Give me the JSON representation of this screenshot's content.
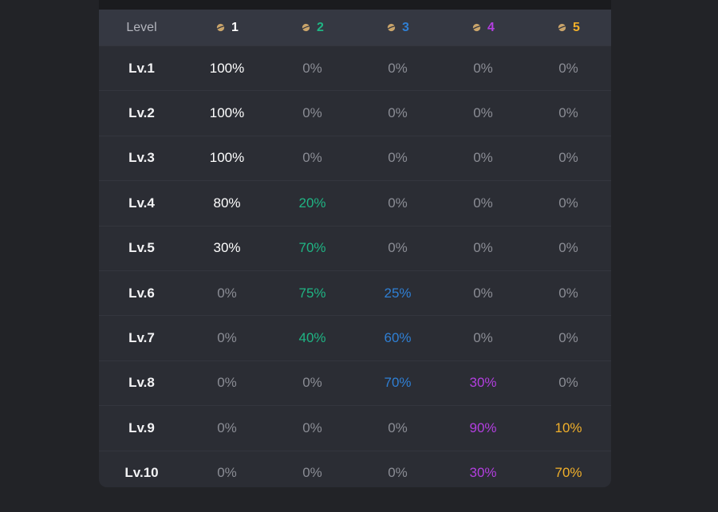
{
  "colors": {
    "tier1": "#ffffff",
    "tier2": "#1fb584",
    "tier3": "#2f7fd4",
    "tier4": "#b33fe0",
    "tier5": "#f2b02a",
    "zero": "#8b8d95",
    "planet_icon": "#c9a46a"
  },
  "table": {
    "header": {
      "level_label": "Level",
      "tiers": [
        "1",
        "2",
        "3",
        "4",
        "5"
      ],
      "icon": "planet-icon"
    },
    "rows": [
      {
        "level": "Lv.1",
        "values": [
          "100%",
          "0%",
          "0%",
          "0%",
          "0%"
        ]
      },
      {
        "level": "Lv.2",
        "values": [
          "100%",
          "0%",
          "0%",
          "0%",
          "0%"
        ]
      },
      {
        "level": "Lv.3",
        "values": [
          "100%",
          "0%",
          "0%",
          "0%",
          "0%"
        ]
      },
      {
        "level": "Lv.4",
        "values": [
          "80%",
          "20%",
          "0%",
          "0%",
          "0%"
        ]
      },
      {
        "level": "Lv.5",
        "values": [
          "30%",
          "70%",
          "0%",
          "0%",
          "0%"
        ]
      },
      {
        "level": "Lv.6",
        "values": [
          "0%",
          "75%",
          "25%",
          "0%",
          "0%"
        ]
      },
      {
        "level": "Lv.7",
        "values": [
          "0%",
          "40%",
          "60%",
          "0%",
          "0%"
        ]
      },
      {
        "level": "Lv.8",
        "values": [
          "0%",
          "0%",
          "70%",
          "30%",
          "0%"
        ]
      },
      {
        "level": "Lv.9",
        "values": [
          "0%",
          "0%",
          "0%",
          "90%",
          "10%"
        ]
      },
      {
        "level": "Lv.10",
        "values": [
          "0%",
          "0%",
          "0%",
          "30%",
          "70%"
        ]
      }
    ]
  }
}
